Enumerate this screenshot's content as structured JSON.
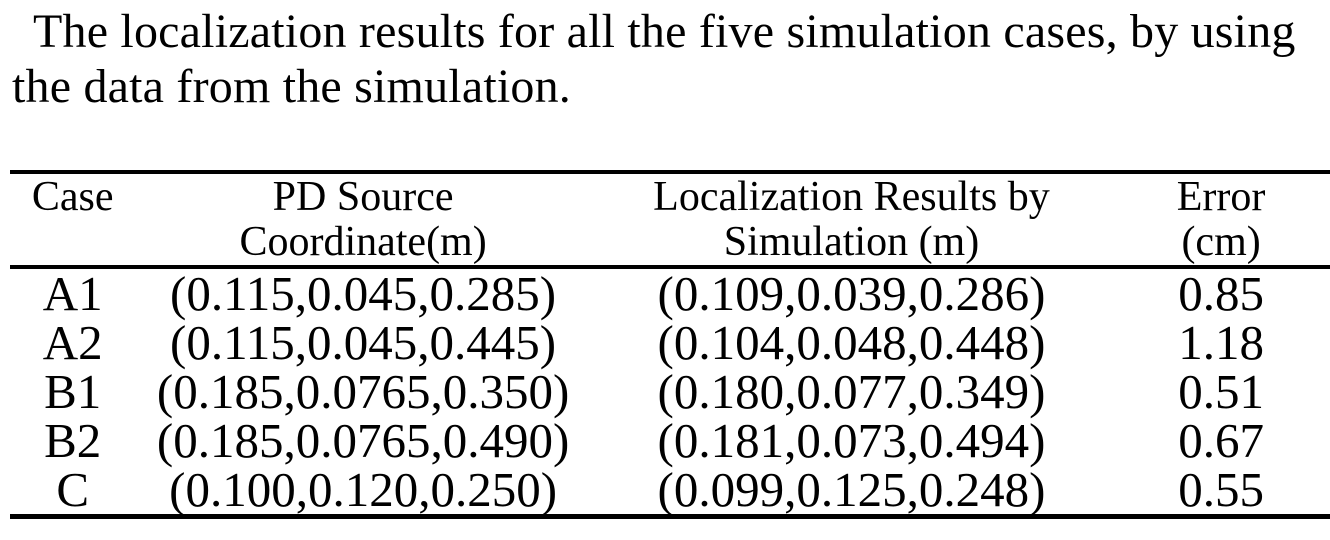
{
  "caption": "The localization results for all the five simulation cases, by using the data from the simulation.",
  "colors": {
    "background": "#ffffff",
    "text": "#000000",
    "rule": "#000000"
  },
  "table": {
    "columns": [
      {
        "line1": "Case",
        "line2": ""
      },
      {
        "line1": "PD Source",
        "line2": "Coordinate(m)"
      },
      {
        "line1": "Localization Results by",
        "line2": "Simulation (m)"
      },
      {
        "line1": "Error",
        "line2": "(cm)"
      }
    ],
    "rows": [
      [
        "A1",
        "(0.115,0.045,0.285)",
        "(0.109,0.039,0.286)",
        "0.85"
      ],
      [
        "A2",
        "(0.115,0.045,0.445)",
        "(0.104,0.048,0.448)",
        "1.18"
      ],
      [
        "B1",
        "(0.185,0.0765,0.350)",
        "(0.180,0.077,0.349)",
        "0.51"
      ],
      [
        "B2",
        "(0.185,0.0765,0.490)",
        "(0.181,0.073,0.494)",
        "0.67"
      ],
      [
        "C",
        "(0.100,0.120,0.250)",
        "(0.099,0.125,0.248)",
        "0.55"
      ]
    ]
  }
}
